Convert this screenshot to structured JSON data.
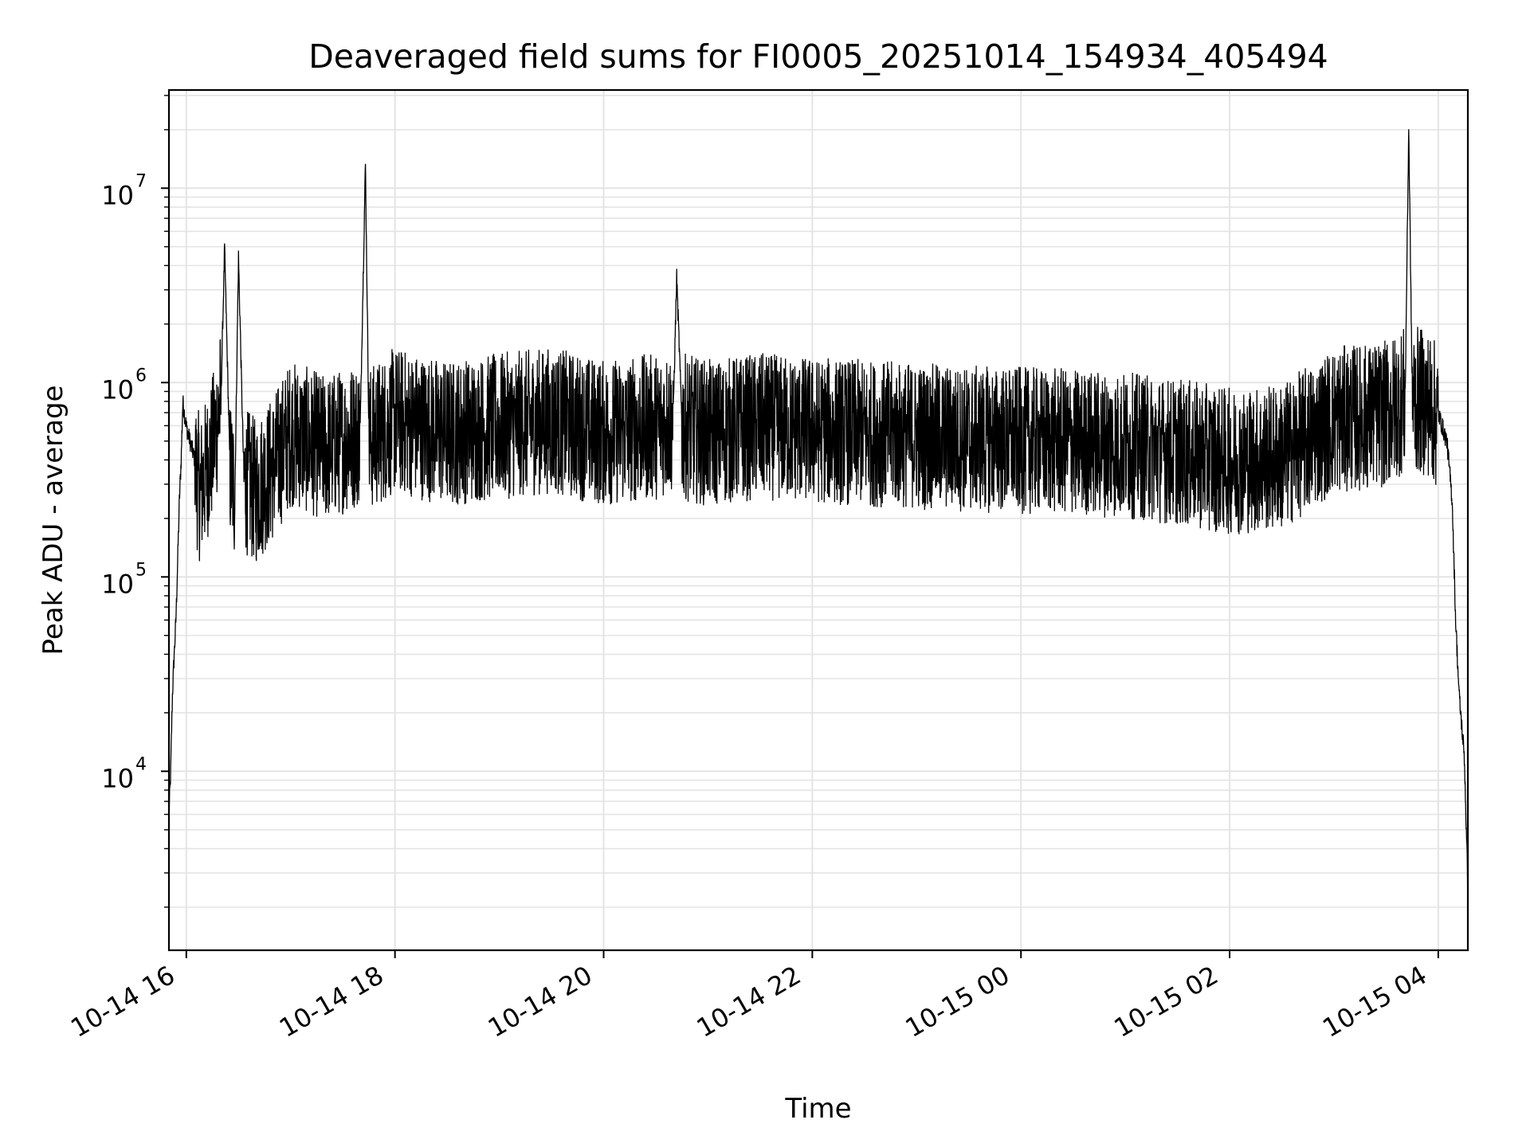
{
  "chart_data": {
    "type": "line",
    "title": "Deaveraged field sums for FI0005_20251014_154934_405494",
    "xlabel": "Time",
    "ylabel": "Peak ADU - average",
    "yscale": "log",
    "grid": true,
    "legend": "none",
    "xlim": [
      "2025-10-14T15:50",
      "2025-10-15T04:17"
    ],
    "ylim": [
      1200,
      32000000
    ],
    "x_ticks": [
      {
        "value": "2025-10-14T16:00",
        "label": "10-14 16"
      },
      {
        "value": "2025-10-14T18:00",
        "label": "10-14 18"
      },
      {
        "value": "2025-10-14T20:00",
        "label": "10-14 20"
      },
      {
        "value": "2025-10-14T22:00",
        "label": "10-14 22"
      },
      {
        "value": "2025-10-15T00:00",
        "label": "10-15 00"
      },
      {
        "value": "2025-10-15T02:00",
        "label": "10-15 02"
      },
      {
        "value": "2025-10-15T04:00",
        "label": "10-15 04"
      }
    ],
    "y_ticks": [
      {
        "value": 10000,
        "base": "10",
        "exp": "4"
      },
      {
        "value": 100000,
        "base": "10",
        "exp": "5"
      },
      {
        "value": 1000000,
        "base": "10",
        "exp": "6"
      },
      {
        "value": 10000000,
        "base": "10",
        "exp": "7"
      }
    ],
    "series": [
      {
        "color": "#000000",
        "x": [
          "2025-10-14T15:50",
          "2025-10-14T15:51",
          "2025-10-14T15:52",
          "2025-10-14T15:53",
          "2025-10-14T15:54",
          "2025-10-14T15:55",
          "2025-10-14T15:56",
          "2025-10-14T15:57",
          "2025-10-14T15:58",
          "2025-10-14T16:00",
          "2025-10-14T16:05",
          "2025-10-14T16:08",
          "2025-10-14T16:15",
          "2025-10-14T16:20",
          "2025-10-14T16:22",
          "2025-10-14T16:25",
          "2025-10-14T16:28",
          "2025-10-14T16:30",
          "2025-10-14T16:33",
          "2025-10-14T16:40",
          "2025-10-14T16:50",
          "2025-10-14T17:00",
          "2025-10-14T17:20",
          "2025-10-14T17:40",
          "2025-10-14T17:43",
          "2025-10-14T17:45",
          "2025-10-14T18:00",
          "2025-10-14T18:30",
          "2025-10-14T19:00",
          "2025-10-14T19:30",
          "2025-10-14T20:00",
          "2025-10-14T20:30",
          "2025-10-14T20:40",
          "2025-10-14T20:42",
          "2025-10-14T20:45",
          "2025-10-14T21:00",
          "2025-10-14T21:30",
          "2025-10-14T22:00",
          "2025-10-14T22:30",
          "2025-10-14T23:00",
          "2025-10-14T23:30",
          "2025-10-15T00:00",
          "2025-10-15T00:30",
          "2025-10-15T01:00",
          "2025-10-15T01:30",
          "2025-10-15T02:00",
          "2025-10-15T02:30",
          "2025-10-15T03:00",
          "2025-10-15T03:30",
          "2025-10-15T03:41",
          "2025-10-15T03:43",
          "2025-10-15T03:45",
          "2025-10-15T03:55",
          "2025-10-15T04:00",
          "2025-10-15T04:05",
          "2025-10-15T04:08",
          "2025-10-15T04:10",
          "2025-10-15T04:12",
          "2025-10-15T04:15",
          "2025-10-15T04:17"
        ],
        "y": [
          6000,
          10000,
          25000,
          40000,
          60000,
          120000,
          250000,
          400000,
          800000,
          600000,
          400000,
          300000,
          500000,
          900000,
          5000000,
          400000,
          300000,
          4500000,
          350000,
          300000,
          400000,
          600000,
          500000,
          600000,
          13500000,
          550000,
          700000,
          600000,
          650000,
          700000,
          600000,
          650000,
          700000,
          3500000,
          650000,
          600000,
          650000,
          620000,
          600000,
          580000,
          560000,
          550000,
          540000,
          520000,
          480000,
          430000,
          450000,
          700000,
          750000,
          900000,
          21000000,
          900000,
          850000,
          700000,
          500000,
          250000,
          60000,
          25000,
          12000,
          2500
        ]
      }
    ]
  }
}
